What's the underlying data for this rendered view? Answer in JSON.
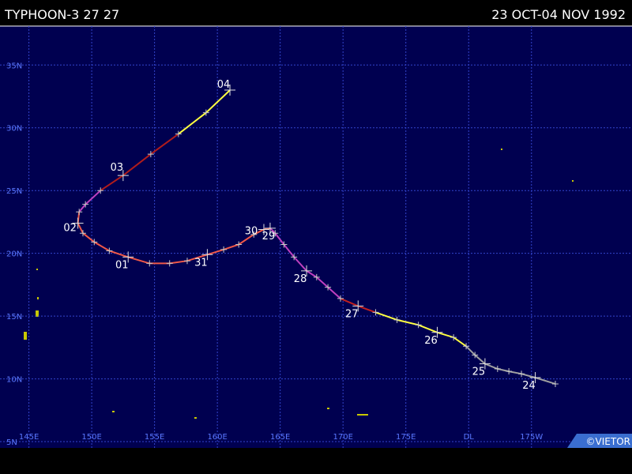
{
  "header": {
    "title": "TYPHOON-3 27 27",
    "period": "23 OCT-04 NOV 1992"
  },
  "credit": "©VIETOR",
  "map": {
    "lonlim": [
      142.7,
      193.0
    ],
    "latlim": [
      4.5,
      38.1
    ],
    "lonticks": [
      {
        "value": 145,
        "label": "145E"
      },
      {
        "value": 150,
        "label": "150E"
      },
      {
        "value": 155,
        "label": "155E"
      },
      {
        "value": 160,
        "label": "160E"
      },
      {
        "value": 165,
        "label": "165E"
      },
      {
        "value": 170,
        "label": "170E"
      },
      {
        "value": 175,
        "label": "175E"
      },
      {
        "value": 180,
        "label": "DL"
      },
      {
        "value": 185,
        "label": "175W"
      }
    ],
    "latticks": [
      {
        "value": 35,
        "label": "35N"
      },
      {
        "value": 30,
        "label": "30N"
      },
      {
        "value": 25,
        "label": "25N"
      },
      {
        "value": 20,
        "label": "20N"
      },
      {
        "value": 15,
        "label": "15N"
      },
      {
        "value": 10,
        "label": "10N"
      },
      {
        "value": 5,
        "label": "5N"
      }
    ],
    "track": {
      "lon": [
        186.9,
        185.3,
        184.2,
        183.2,
        182.3,
        181.3,
        180.5,
        179.8,
        178.8,
        177.5,
        176.0,
        174.3,
        172.6,
        171.2,
        169.8,
        168.8,
        167.9,
        167.1,
        166.1,
        165.3,
        164.6,
        164.2,
        163.7,
        162.9,
        161.7,
        160.5,
        159.2,
        157.6,
        156.2,
        154.6,
        152.9,
        151.4,
        150.2,
        149.3,
        148.9,
        149.0,
        149.5,
        150.7,
        152.5,
        154.7,
        156.9,
        159.1,
        161.0
      ],
      "lat": [
        9.6,
        10.1,
        10.4,
        10.6,
        10.8,
        11.2,
        11.9,
        12.6,
        13.3,
        13.7,
        14.3,
        14.7,
        15.3,
        15.8,
        16.4,
        17.3,
        18.1,
        18.6,
        19.7,
        20.7,
        21.6,
        22.0,
        21.9,
        21.5,
        20.7,
        20.3,
        19.9,
        19.4,
        19.2,
        19.2,
        19.7,
        20.2,
        20.9,
        21.6,
        22.4,
        23.3,
        23.9,
        25.0,
        26.2,
        27.9,
        29.5,
        31.2,
        33.0
      ],
      "segments": [
        {
          "from": 0,
          "to": 7,
          "color": "#a0a0a0"
        },
        {
          "from": 7,
          "to": 12,
          "color": "#ffff40"
        },
        {
          "from": 12,
          "to": 14,
          "color": "#c02020"
        },
        {
          "from": 14,
          "to": 21,
          "color": "#c040c0"
        },
        {
          "from": 21,
          "to": 35,
          "color": "#f05848"
        },
        {
          "from": 35,
          "to": 37,
          "color": "#c040c0"
        },
        {
          "from": 37,
          "to": 40,
          "color": "#b01c1c"
        },
        {
          "from": 40,
          "to": 42,
          "color": "#ffff40"
        }
      ],
      "labels": [
        {
          "text": "24",
          "point": 1
        },
        {
          "text": "25",
          "point": 5
        },
        {
          "text": "26",
          "point": 9
        },
        {
          "text": "27",
          "point": 13
        },
        {
          "text": "28",
          "point": 17
        },
        {
          "text": "29",
          "point": 21
        },
        {
          "text": "30",
          "point": 22
        },
        {
          "text": "31",
          "point": 26
        },
        {
          "text": "01",
          "point": 30
        },
        {
          "text": "02",
          "point": 34
        },
        {
          "text": "03",
          "point": 38
        },
        {
          "text": "04",
          "point": 42
        }
      ]
    }
  }
}
